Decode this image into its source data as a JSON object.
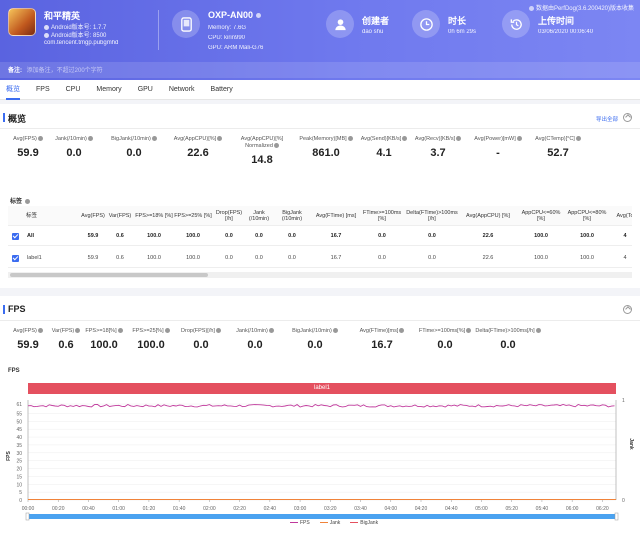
{
  "header": {
    "game": {
      "name": "和平精英",
      "android_version": "Android版本号: 1.7.7",
      "android_build": "Android版本号: 8500",
      "package": "com.tencent.tmgp.pubgmhd"
    },
    "device": {
      "model": "OXP-AN00",
      "memory": "Memory: 7.6G",
      "cpu": "CPU: kirin990",
      "gpu": "GPU: ARM Mali-G76"
    },
    "creator": {
      "label": "创建者",
      "value": "dao shu"
    },
    "duration": {
      "label": "时长",
      "value": "0h 6m 29s"
    },
    "upload": {
      "label": "上传时间",
      "value": "03/06/2020 00:06:40"
    },
    "perfdog_note": "数据由PerfDog(3.6.200420)版本收集",
    "note_label": "备注:",
    "note_placeholder": "添加备注，不超过200个字符"
  },
  "tabs": [
    "概览",
    "FPS",
    "CPU",
    "Memory",
    "GPU",
    "Network",
    "Battery"
  ],
  "overview": {
    "title": "概览",
    "export": "导出全部",
    "stats": [
      {
        "label": "Avg(FPS)",
        "value": "59.9"
      },
      {
        "label": "Jank(/10min)",
        "value": "0.0"
      },
      {
        "label": "BigJank(/10min)",
        "value": "0.0"
      },
      {
        "label": "Avg(AppCPU)[%]",
        "value": "22.6"
      },
      {
        "label": "Avg(AppCPU)[%] Normalized",
        "value": "14.8"
      },
      {
        "label": "Peak(Memory)[MB]",
        "value": "861.0"
      },
      {
        "label": "Avg(Send)[KB/s]",
        "value": "4.1"
      },
      {
        "label": "Avg(Recv)[KB/s]",
        "value": "3.7"
      },
      {
        "label": "Avg(Power)[mW]",
        "value": "-"
      },
      {
        "label": "Avg(CTemp)[°C]",
        "value": "52.7"
      }
    ],
    "table_title": "标签",
    "table_headers": [
      "标签",
      "Avg(FPS)",
      "Var(FPS)",
      "FPS>=18% [%]",
      "FPS>=25% [%]",
      "Drop(FPS) [/h]",
      "Jank (/10min)",
      "BigJank (/10min)",
      "Avg(FTime) [ms]",
      "FTime>=100ms [%]",
      "Delta(FTime)>100ms [/h]",
      "Avg(AppCPU) [%]",
      "AppCPU<=60% [%]",
      "AppCPU<=80% [%]",
      "Avg(To"
    ],
    "table_rows": [
      [
        "All",
        "59.9",
        "0.6",
        "100.0",
        "100.0",
        "0.0",
        "0.0",
        "0.0",
        "16.7",
        "0.0",
        "0.0",
        "22.6",
        "100.0",
        "100.0",
        "4"
      ],
      [
        "label1",
        "59.9",
        "0.6",
        "100.0",
        "100.0",
        "0.0",
        "0.0",
        "0.0",
        "16.7",
        "0.0",
        "0.0",
        "22.6",
        "100.0",
        "100.0",
        "4"
      ]
    ]
  },
  "fps": {
    "title": "FPS",
    "stats": [
      {
        "label": "Avg(FPS)",
        "value": "59.9"
      },
      {
        "label": "Var(FPS)",
        "value": "0.6"
      },
      {
        "label": "FPS>=18[%]",
        "value": "100.0"
      },
      {
        "label": "FPS>=25[%]",
        "value": "100.0"
      },
      {
        "label": "Drop(FPS)[/h]",
        "value": "0.0"
      },
      {
        "label": "Jank(/10min)",
        "value": "0.0"
      },
      {
        "label": "BigJank(/10min)",
        "value": "0.0"
      },
      {
        "label": "Avg(FTime)[ms]",
        "value": "16.7"
      },
      {
        "label": "FTime>=100ms[%]",
        "value": "0.0"
      },
      {
        "label": "Delta(FTime)>100ms[/h]",
        "value": "0.0"
      }
    ]
  },
  "chart_data": {
    "type": "line",
    "chart_label": "FPS",
    "band_label": "label1",
    "ylabel_left": "FPS",
    "ylabel_right": "Jank",
    "yticks_left": [
      "61",
      "55",
      "50",
      "45",
      "40",
      "35",
      "30",
      "25",
      "20",
      "15",
      "10",
      "5",
      "0"
    ],
    "yticks_right": [
      "1",
      "0"
    ],
    "xticks": [
      "00:00",
      "00:20",
      "00:40",
      "01:00",
      "01:20",
      "01:40",
      "02:00",
      "02:20",
      "02:40",
      "03:00",
      "03:20",
      "03:40",
      "04:00",
      "04:20",
      "04:40",
      "05:00",
      "05:20",
      "05:40",
      "06:00",
      "06:20"
    ],
    "ylim": [
      0,
      61
    ],
    "duration_seconds": 389,
    "series": [
      {
        "name": "FPS",
        "color": "#c0399c",
        "mean": 59.9,
        "jitter": 0.8
      },
      {
        "name": "Jank",
        "color": "#f0833a",
        "value": 0
      },
      {
        "name": "BigJank",
        "color": "#e4505f",
        "value": 0
      }
    ]
  },
  "colors": {
    "accent": "#3b6cf0",
    "header": "#5a63e0",
    "band": "#e4505f"
  }
}
